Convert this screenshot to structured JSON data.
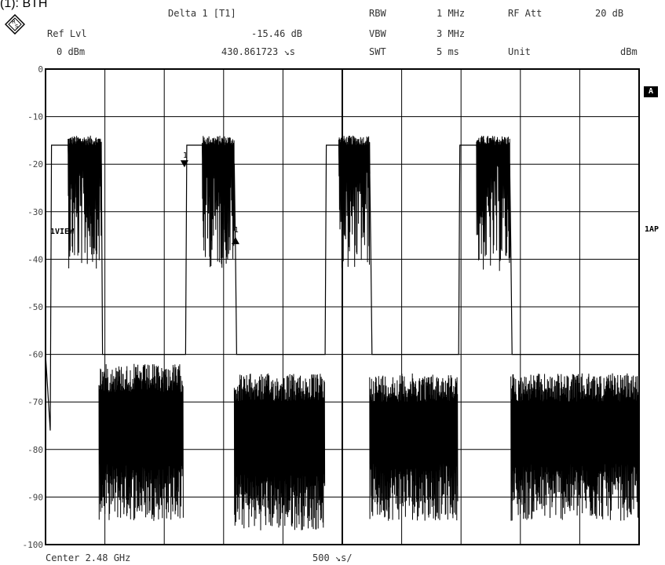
{
  "page_title": "(1): BTH",
  "header": {
    "delta_label": "Delta 1 [T1]",
    "ref_lvl_label": "Ref Lvl",
    "ref_lvl_value": "0 dBm",
    "delta_value": "-15.46 dB",
    "delta_time": "430.861723 ↘s",
    "rbw_label": "RBW",
    "rbw_value": "1 MHz",
    "vbw_label": "VBW",
    "vbw_value": "3 MHz",
    "swt_label": "SWT",
    "swt_value": "5 ms",
    "rfatt_label": "RF Att",
    "rfatt_value": "20 dB",
    "unit_label": "Unit",
    "unit_value": "dBm"
  },
  "side": {
    "tag_a": "A",
    "tag_1ap": "1AP",
    "trace_label": "1VIEW"
  },
  "footer": {
    "center": "Center 2.48 GHz",
    "span": "500 ↘s/"
  },
  "chart_data": {
    "type": "line",
    "title": "",
    "xlabel": "",
    "ylabel": "",
    "ylim": [
      -100,
      0
    ],
    "xlim": [
      0,
      5000
    ],
    "x_unit": "µs",
    "y_ticks": [
      "0",
      "-10",
      "-20",
      "-30",
      "-40",
      "-50",
      "-60",
      "-70",
      "-80",
      "-90",
      "-100"
    ],
    "y_tick_values": [
      0,
      -10,
      -20,
      -30,
      -40,
      -50,
      -60,
      -70,
      -80,
      -90,
      -100
    ],
    "grid": true,
    "series": [
      {
        "envelope": [
          [
            0,
            -60
          ],
          [
            40,
            -76
          ],
          [
            50,
            -16
          ],
          [
            190,
            -16
          ],
          [
            195,
            -20
          ],
          [
            470,
            -20
          ],
          [
            475,
            -38
          ],
          [
            480,
            -60
          ],
          [
            1180,
            -60
          ],
          [
            1190,
            -16
          ],
          [
            1320,
            -16
          ],
          [
            1325,
            -20
          ],
          [
            1590,
            -20
          ],
          [
            1600,
            -38
          ],
          [
            1610,
            -60
          ],
          [
            2355,
            -60
          ],
          [
            2365,
            -16
          ],
          [
            2470,
            -16
          ],
          [
            2475,
            -20
          ],
          [
            2730,
            -20
          ],
          [
            2740,
            -38
          ],
          [
            2750,
            -60
          ],
          [
            3480,
            -60
          ],
          [
            3490,
            -16
          ],
          [
            3630,
            -16
          ],
          [
            3640,
            -20
          ],
          [
            3910,
            -20
          ],
          [
            3920,
            -38
          ],
          [
            3930,
            -60
          ],
          [
            5000,
            -60
          ]
        ],
        "bursts": [
          {
            "from": 190,
            "to": 470,
            "top": -16,
            "bottom": -42
          },
          {
            "from": 1320,
            "to": 1590,
            "top": -16,
            "bottom": -42
          },
          {
            "from": 2470,
            "to": 2730,
            "top": -16,
            "bottom": -42
          },
          {
            "from": 3630,
            "to": 3910,
            "top": -16,
            "bottom": -43
          }
        ],
        "noise_floors": [
          {
            "from": 450,
            "to": 1160,
            "top": -62,
            "bottom": -95
          },
          {
            "from": 1590,
            "to": 2350,
            "top": -64,
            "bottom": -97
          },
          {
            "from": 2730,
            "to": 3470,
            "top": -64,
            "bottom": -95
          },
          {
            "from": 3920,
            "to": 5000,
            "top": -64,
            "bottom": -95
          }
        ]
      }
    ],
    "markers": [
      {
        "label": "1",
        "x": 1170,
        "y": -20,
        "shape": "down-triangle"
      },
      {
        "label": "1",
        "x": 1600,
        "y": -36,
        "shape": "up-triangle"
      }
    ]
  }
}
